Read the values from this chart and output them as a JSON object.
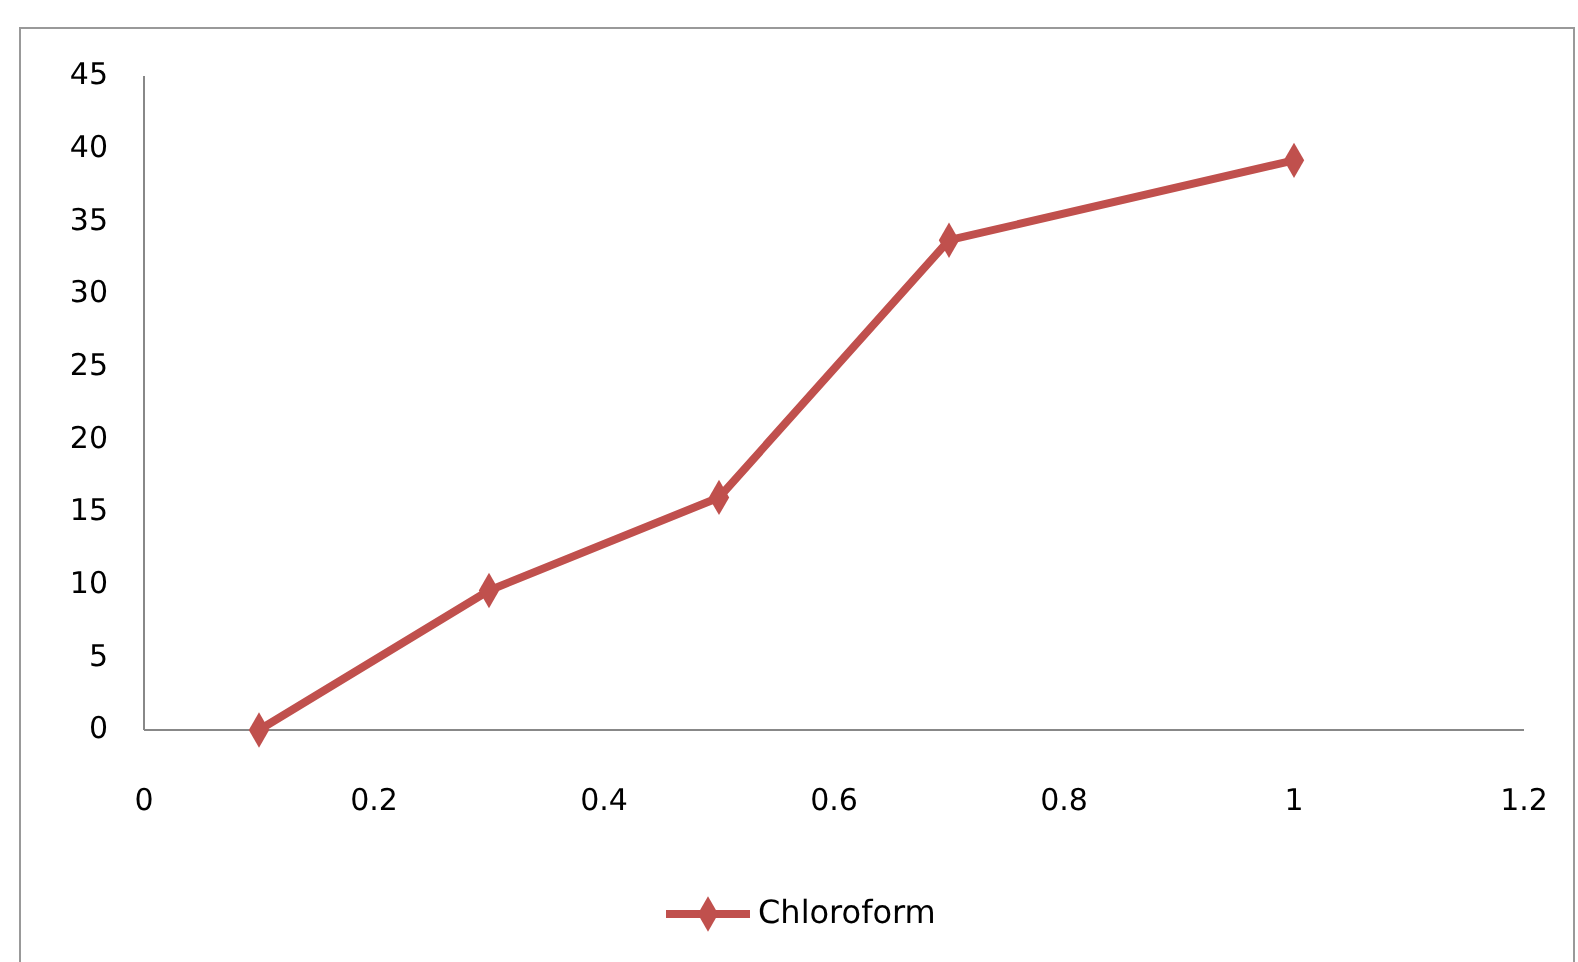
{
  "chart_data": {
    "type": "line",
    "x": [
      0.1,
      0.3,
      0.5,
      0.7,
      1
    ],
    "series": [
      {
        "name": "Chloroform",
        "color": "#c0504d",
        "values": [
          0,
          9.6,
          16,
          33.7,
          39.2
        ]
      }
    ],
    "xlim": [
      0,
      1.2
    ],
    "xticks": [
      0,
      0.2,
      0.4,
      0.6,
      0.8,
      1,
      1.2
    ],
    "ylim": [
      0,
      45
    ],
    "yticks": [
      0,
      5,
      10,
      15,
      20,
      25,
      30,
      35,
      40,
      45
    ],
    "grid": false,
    "legend": "bottom",
    "marker": "diamond",
    "line_style": "solid"
  }
}
